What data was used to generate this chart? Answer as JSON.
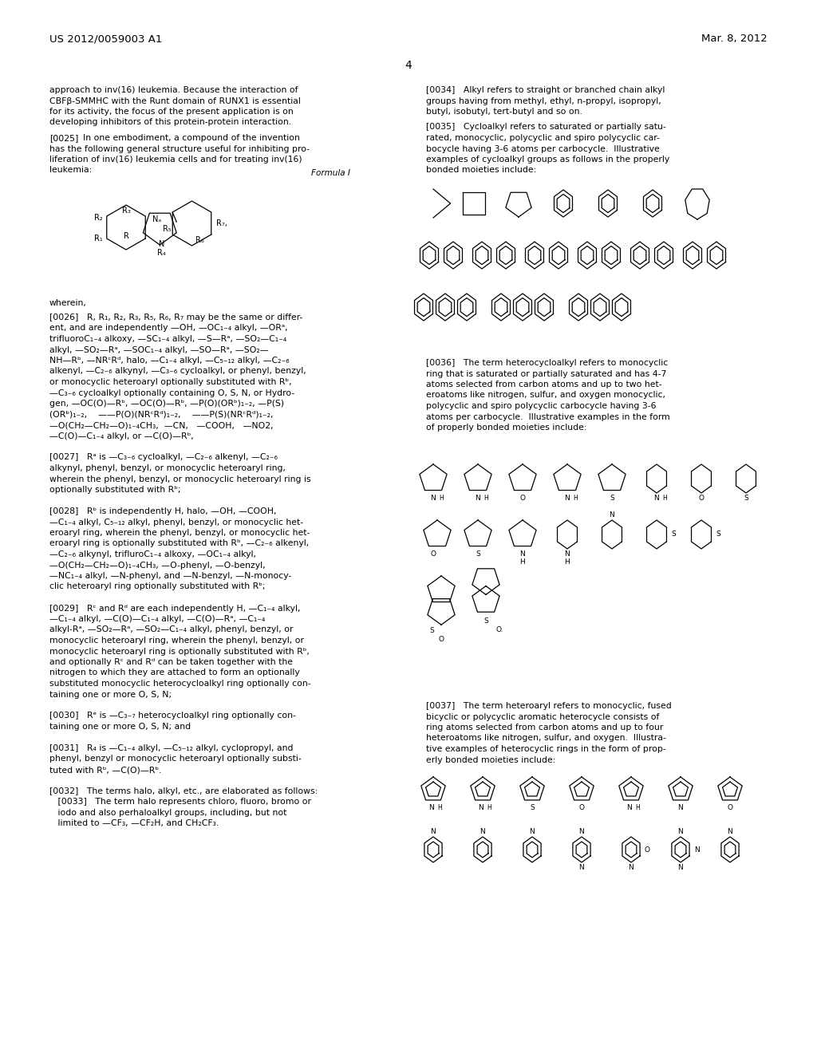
{
  "page_number": "4",
  "header_left": "US 2012/0059003 A1",
  "header_right": "Mar. 8, 2012",
  "background_color": "#ffffff",
  "text_color": "#000000",
  "font_size_body": 7.8,
  "font_size_tag": 7.8
}
